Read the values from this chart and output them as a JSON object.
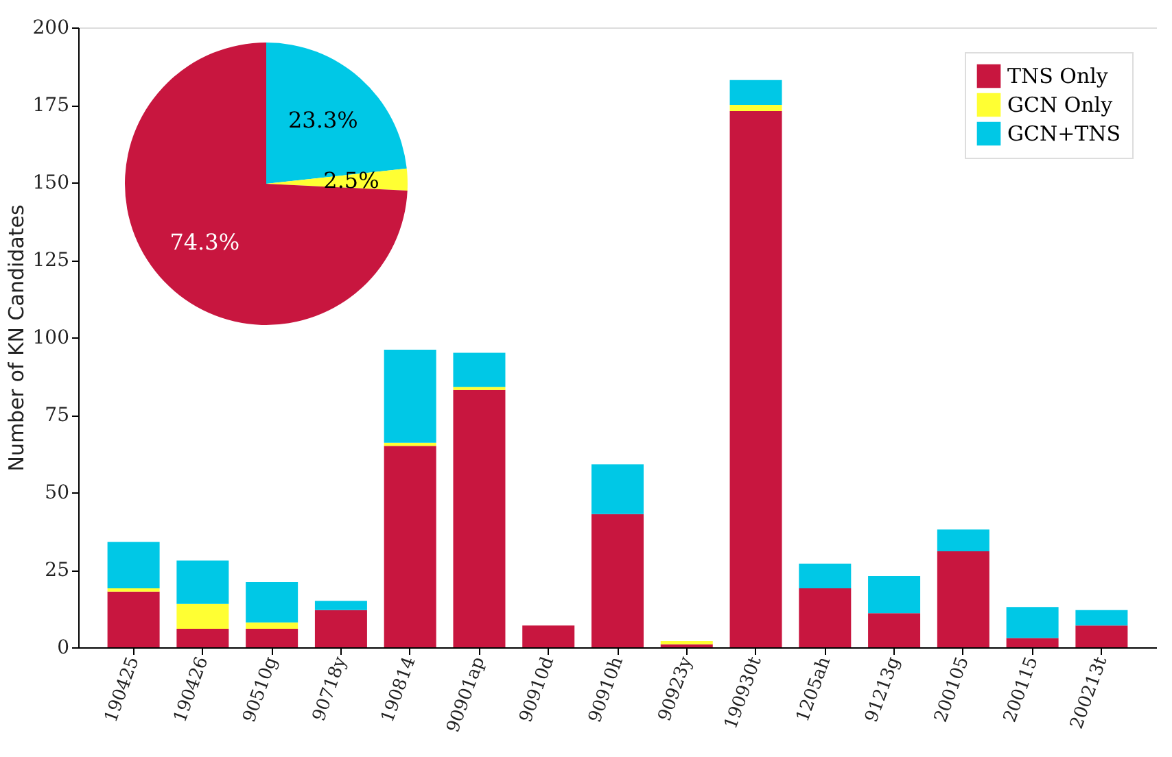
{
  "chart_data": [
    {
      "type": "bar",
      "stacked": true,
      "ylabel": "Number of KN Candidates",
      "categories": [
        "190425",
        "190426",
        "90510g",
        "90718y",
        "190814",
        "90901ap",
        "90910d",
        "90910h",
        "90923y",
        "190930t",
        "1205ah",
        "91213g",
        "200105",
        "200115",
        "200213t"
      ],
      "series": [
        {
          "name": "TNS Only",
          "color": "#c8163f",
          "values": [
            18,
            6,
            6,
            12,
            65,
            83,
            7,
            43,
            1,
            173,
            19,
            11,
            31,
            3,
            7
          ]
        },
        {
          "name": "GCN Only",
          "color": "#ffff33",
          "values": [
            1,
            8,
            2,
            0,
            1,
            1,
            0,
            0,
            1,
            2,
            0,
            0,
            0,
            0,
            0
          ]
        },
        {
          "name": "GCN+TNS",
          "color": "#00c8e6",
          "values": [
            15,
            14,
            13,
            3,
            30,
            11,
            0,
            16,
            0,
            8,
            8,
            12,
            7,
            10,
            5
          ]
        }
      ],
      "ylim": [
        0,
        200
      ],
      "yticks": [
        0,
        25,
        50,
        75,
        100,
        125,
        150,
        175,
        200
      ],
      "grid": false,
      "legend": "top right"
    },
    {
      "type": "pie",
      "categories": [
        null,
        null,
        null
      ],
      "values": [
        23.3,
        2.5,
        74.3
      ],
      "colors": [
        "#00c8e6",
        "#ffff33",
        "#c8163f"
      ],
      "value_labels": [
        "23.3%",
        "2.5%",
        "74.3%"
      ]
    }
  ]
}
